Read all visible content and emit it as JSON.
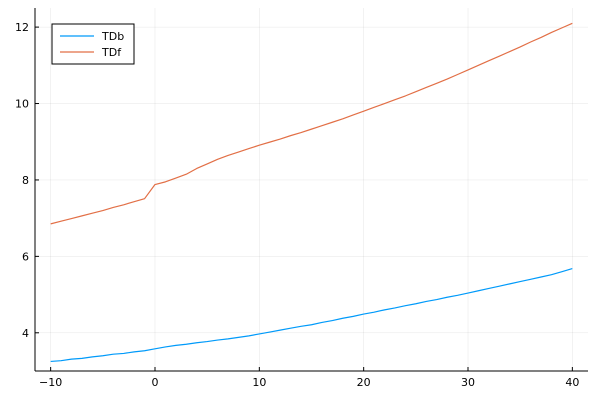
{
  "chart_data": {
    "type": "line",
    "title": "",
    "xlabel": "",
    "ylabel": "",
    "xlim": [
      -11.5,
      41.5
    ],
    "ylim": [
      3.0,
      12.5
    ],
    "xticks": [
      -10,
      0,
      10,
      20,
      30,
      40
    ],
    "yticks": [
      4,
      6,
      8,
      10,
      12
    ],
    "xtick_labels": [
      "−10",
      "0",
      "10",
      "20",
      "30",
      "40"
    ],
    "ytick_labels": [
      "4",
      "6",
      "8",
      "10",
      "12"
    ],
    "grid": true,
    "legend": "top-left",
    "series": [
      {
        "name": "TDb",
        "color": "#009AFA",
        "x": [
          -10,
          -9,
          -8,
          -7,
          -6,
          -5,
          -4,
          -3,
          -2,
          -1,
          0,
          1,
          2,
          3,
          4,
          5,
          6,
          7,
          8,
          9,
          10,
          11,
          12,
          13,
          14,
          15,
          16,
          17,
          18,
          19,
          20,
          21,
          22,
          23,
          24,
          25,
          26,
          27,
          28,
          29,
          30,
          31,
          32,
          33,
          34,
          35,
          36,
          37,
          38,
          39,
          40
        ],
        "y": [
          3.25,
          3.27,
          3.31,
          3.33,
          3.37,
          3.4,
          3.44,
          3.46,
          3.5,
          3.53,
          3.58,
          3.63,
          3.67,
          3.7,
          3.74,
          3.77,
          3.81,
          3.84,
          3.88,
          3.92,
          3.97,
          4.02,
          4.07,
          4.12,
          4.17,
          4.21,
          4.27,
          4.32,
          4.38,
          4.43,
          4.49,
          4.54,
          4.6,
          4.65,
          4.71,
          4.76,
          4.82,
          4.87,
          4.93,
          4.98,
          5.04,
          5.1,
          5.16,
          5.22,
          5.28,
          5.34,
          5.4,
          5.46,
          5.52,
          5.6,
          5.68
        ]
      },
      {
        "name": "TDf",
        "color": "#E26F46",
        "x": [
          -10,
          -9,
          -8,
          -7,
          -6,
          -5,
          -4,
          -3,
          -2,
          -1,
          0,
          1,
          2,
          3,
          4,
          5,
          6,
          7,
          8,
          9,
          10,
          11,
          12,
          13,
          14,
          15,
          16,
          17,
          18,
          19,
          20,
          21,
          22,
          23,
          24,
          25,
          26,
          27,
          28,
          29,
          30,
          31,
          32,
          33,
          34,
          35,
          36,
          37,
          38,
          39,
          40
        ],
        "y": [
          6.85,
          6.92,
          6.99,
          7.06,
          7.13,
          7.2,
          7.28,
          7.35,
          7.43,
          7.51,
          7.88,
          7.95,
          8.05,
          8.15,
          8.3,
          8.42,
          8.54,
          8.64,
          8.73,
          8.82,
          8.91,
          8.99,
          9.07,
          9.16,
          9.24,
          9.33,
          9.42,
          9.51,
          9.6,
          9.7,
          9.8,
          9.9,
          10.0,
          10.1,
          10.2,
          10.31,
          10.42,
          10.53,
          10.64,
          10.76,
          10.88,
          11.0,
          11.12,
          11.24,
          11.36,
          11.48,
          11.61,
          11.73,
          11.86,
          11.98,
          12.1
        ]
      }
    ]
  }
}
